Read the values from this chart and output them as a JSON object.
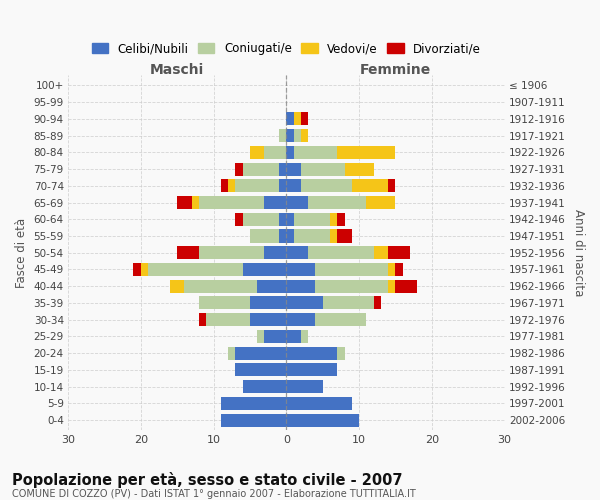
{
  "age_groups": [
    "0-4",
    "5-9",
    "10-14",
    "15-19",
    "20-24",
    "25-29",
    "30-34",
    "35-39",
    "40-44",
    "45-49",
    "50-54",
    "55-59",
    "60-64",
    "65-69",
    "70-74",
    "75-79",
    "80-84",
    "85-89",
    "90-94",
    "95-99",
    "100+"
  ],
  "birth_years": [
    "2002-2006",
    "1997-2001",
    "1992-1996",
    "1987-1991",
    "1982-1986",
    "1977-1981",
    "1972-1976",
    "1967-1971",
    "1962-1966",
    "1957-1961",
    "1952-1956",
    "1947-1951",
    "1942-1946",
    "1937-1941",
    "1932-1936",
    "1927-1931",
    "1922-1926",
    "1917-1921",
    "1912-1916",
    "1907-1911",
    "≤ 1906"
  ],
  "males": {
    "celibi": [
      9,
      9,
      6,
      7,
      7,
      3,
      5,
      5,
      4,
      6,
      3,
      1,
      1,
      3,
      1,
      1,
      0,
      0,
      0,
      0,
      0
    ],
    "coniugati": [
      0,
      0,
      0,
      0,
      1,
      1,
      6,
      7,
      10,
      13,
      9,
      4,
      5,
      9,
      6,
      5,
      3,
      1,
      0,
      0,
      0
    ],
    "vedovi": [
      0,
      0,
      0,
      0,
      0,
      0,
      0,
      0,
      2,
      1,
      0,
      0,
      0,
      1,
      1,
      0,
      2,
      0,
      0,
      0,
      0
    ],
    "divorziati": [
      0,
      0,
      0,
      0,
      0,
      0,
      1,
      0,
      0,
      1,
      3,
      0,
      1,
      2,
      1,
      1,
      0,
      0,
      0,
      0,
      0
    ]
  },
  "females": {
    "celibi": [
      10,
      9,
      5,
      7,
      7,
      2,
      4,
      5,
      4,
      4,
      3,
      1,
      1,
      3,
      2,
      2,
      1,
      1,
      1,
      0,
      0
    ],
    "coniugati": [
      0,
      0,
      0,
      0,
      1,
      1,
      7,
      7,
      10,
      10,
      9,
      5,
      5,
      8,
      7,
      6,
      6,
      1,
      0,
      0,
      0
    ],
    "vedovi": [
      0,
      0,
      0,
      0,
      0,
      0,
      0,
      0,
      1,
      1,
      2,
      1,
      1,
      4,
      5,
      4,
      8,
      1,
      1,
      0,
      0
    ],
    "divorziati": [
      0,
      0,
      0,
      0,
      0,
      0,
      0,
      1,
      3,
      1,
      3,
      2,
      1,
      0,
      1,
      0,
      0,
      0,
      1,
      0,
      0
    ]
  },
  "colors": {
    "celibi": "#4472c4",
    "coniugati": "#b8cfa0",
    "vedovi": "#f5c518",
    "divorziati": "#cc0000"
  },
  "title": "Popolazione per età, sesso e stato civile - 2007",
  "subtitle": "COMUNE DI COZZO (PV) - Dati ISTAT 1° gennaio 2007 - Elaborazione TUTTITALIA.IT",
  "xlabel_left": "Maschi",
  "xlabel_right": "Femmine",
  "ylabel_left": "Fasce di età",
  "ylabel_right": "Anni di nascita",
  "xlim": 30,
  "legend_labels": [
    "Celibi/Nubili",
    "Coniugati/e",
    "Vedovi/e",
    "Divorziati/e"
  ],
  "bg_color": "#f9f9f9",
  "grid_color": "#cccccc"
}
